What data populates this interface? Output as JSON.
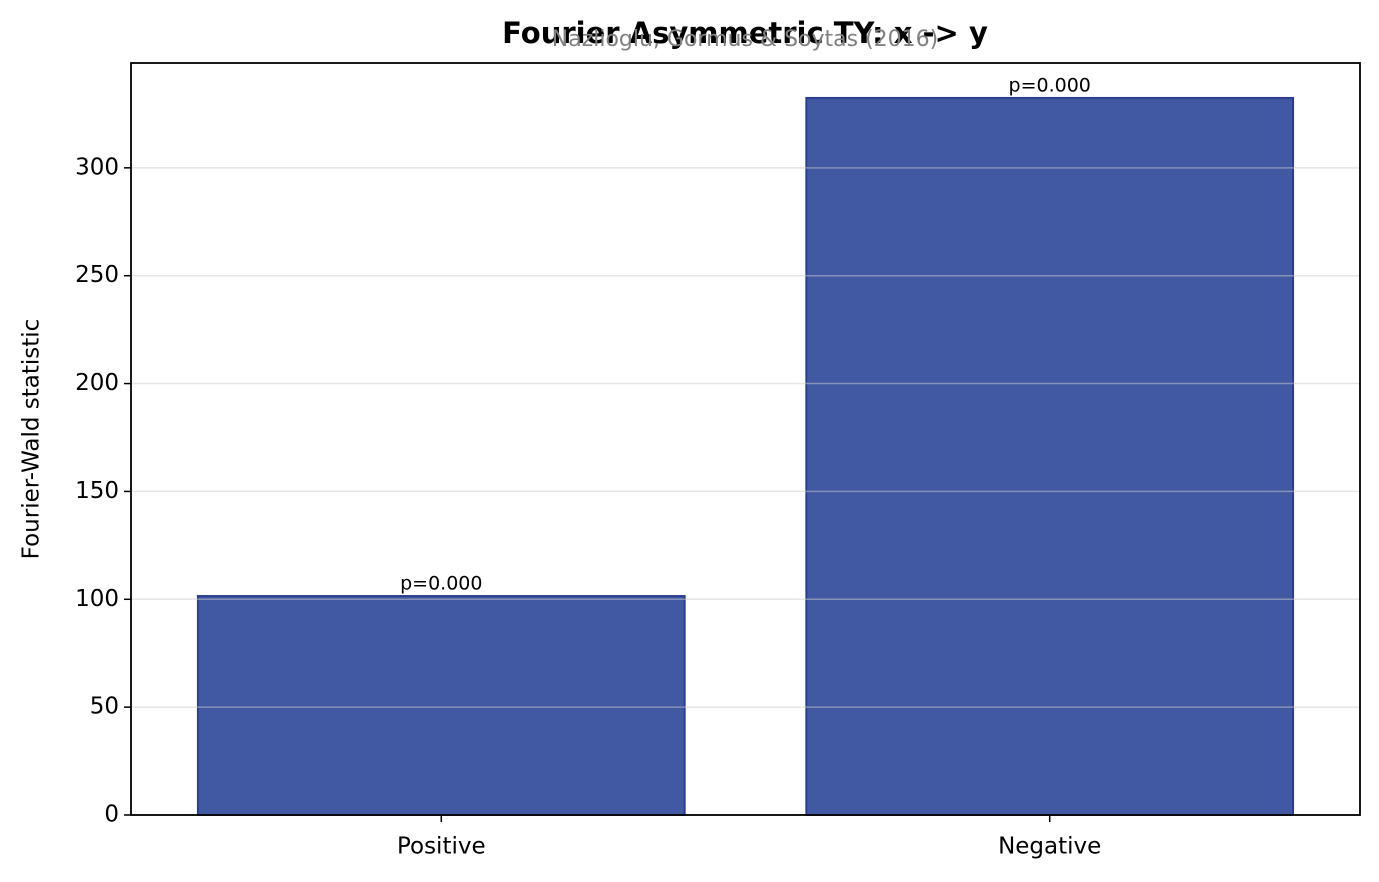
{
  "chart_data": {
    "type": "bar",
    "title": "Fourier Asymmetric TY: x -> y",
    "subtitle": "Nazlioglu, Gormus & Soytas (2016)",
    "y_label": "Fourier-Wald statistic",
    "categories": [
      "Positive",
      "Negative"
    ],
    "values": [
      101.5,
      332.4
    ],
    "p_labels": [
      "p=0.000",
      "p=0.000"
    ],
    "color": "#4158a3",
    "ylim": [
      0,
      348.6
    ],
    "yticks": [
      0,
      50,
      100,
      150,
      200,
      250,
      300
    ],
    "grid": true
  }
}
